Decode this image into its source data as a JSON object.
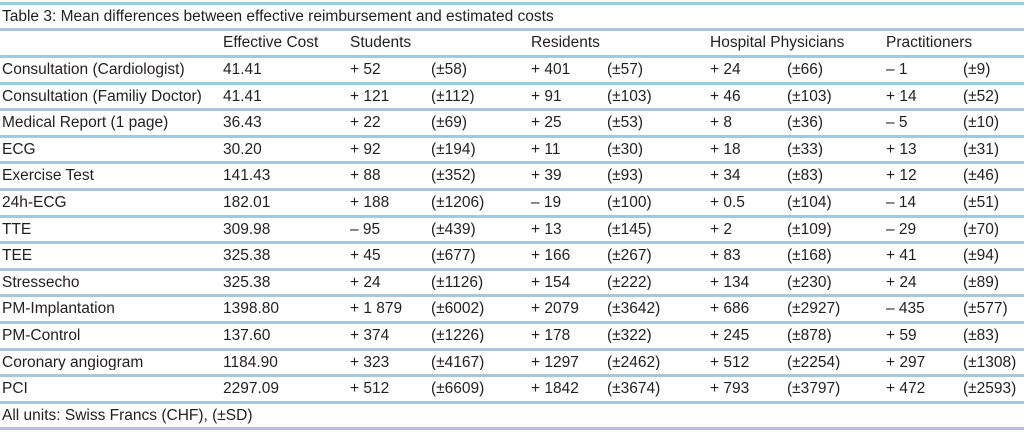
{
  "table": {
    "title": "Table 3: Mean differences between effective reimbursement and estimated costs",
    "header": {
      "row_label": "",
      "effective_cost": "Effective Cost",
      "groups": [
        "Students",
        "Residents",
        "Hospital Physicians",
        "Practitioners"
      ]
    },
    "rows": [
      {
        "label": "Consultation (Cardiologist)",
        "effective_cost": "41.41",
        "groups": [
          {
            "diff": "+ 52",
            "sd": "(±58)"
          },
          {
            "diff": "+ 401",
            "sd": "(±57)"
          },
          {
            "diff": "+ 24",
            "sd": "(±66)"
          },
          {
            "diff": "– 1",
            "sd": "(±9)"
          }
        ]
      },
      {
        "label": "Consultation (Familiy Doctor)",
        "effective_cost": "41.41",
        "groups": [
          {
            "diff": "+ 121",
            "sd": "(±112)"
          },
          {
            "diff": "+ 91",
            "sd": "(±103)"
          },
          {
            "diff": "+ 46",
            "sd": "(±103)"
          },
          {
            "diff": "+ 14",
            "sd": "(±52)"
          }
        ]
      },
      {
        "label": "Medical Report (1 page)",
        "effective_cost": "36.43",
        "groups": [
          {
            "diff": "+ 22",
            "sd": "(±69)"
          },
          {
            "diff": "+ 25",
            "sd": "(±53)"
          },
          {
            "diff": "+ 8",
            "sd": "(±36)"
          },
          {
            "diff": "– 5",
            "sd": "(±10)"
          }
        ]
      },
      {
        "label": "ECG",
        "effective_cost": "30.20",
        "groups": [
          {
            "diff": "+ 92",
            "sd": "(±194)"
          },
          {
            "diff": "+ 11",
            "sd": "(±30)"
          },
          {
            "diff": "+ 18",
            "sd": "(±33)"
          },
          {
            "diff": "+ 13",
            "sd": "(±31)"
          }
        ]
      },
      {
        "label": "Exercise Test",
        "effective_cost": "141.43",
        "groups": [
          {
            "diff": "+ 88",
            "sd": "(±352)"
          },
          {
            "diff": "+ 39",
            "sd": "(±93)"
          },
          {
            "diff": "+ 34",
            "sd": "(±83)"
          },
          {
            "diff": "+ 12",
            "sd": "(±46)"
          }
        ]
      },
      {
        "label": "24h-ECG",
        "effective_cost": "182.01",
        "groups": [
          {
            "diff": "+ 188",
            "sd": "(±1206)"
          },
          {
            "diff": "– 19",
            "sd": "(±100)"
          },
          {
            "diff": "+ 0.5",
            "sd": "(±104)"
          },
          {
            "diff": "– 14",
            "sd": "(±51)"
          }
        ]
      },
      {
        "label": "TTE",
        "effective_cost": "309.98",
        "groups": [
          {
            "diff": "– 95",
            "sd": "(±439)"
          },
          {
            "diff": "+ 13",
            "sd": "(±145)"
          },
          {
            "diff": "+ 2",
            "sd": "(±109)"
          },
          {
            "diff": "– 29",
            "sd": "(±70)"
          }
        ]
      },
      {
        "label": "TEE",
        "effective_cost": "325.38",
        "groups": [
          {
            "diff": "+ 45",
            "sd": "(±677)"
          },
          {
            "diff": "+ 166",
            "sd": "(±267)"
          },
          {
            "diff": "+ 83",
            "sd": "(±168)"
          },
          {
            "diff": "+ 41",
            "sd": "(±94)"
          }
        ]
      },
      {
        "label": "Stressecho",
        "effective_cost": "325.38",
        "groups": [
          {
            "diff": "+ 24",
            "sd": "(±1126)"
          },
          {
            "diff": "+ 154",
            "sd": "(±222)"
          },
          {
            "diff": "+ 134",
            "sd": "(±230)"
          },
          {
            "diff": "+ 24",
            "sd": "(±89)"
          }
        ]
      },
      {
        "label": "PM-Implantation",
        "effective_cost": "1398.80",
        "groups": [
          {
            "diff": "+ 1 879",
            "sd": "(±6002)"
          },
          {
            "diff": "+ 2079",
            "sd": "(±3642)"
          },
          {
            "diff": "+ 686",
            "sd": "(±2927)"
          },
          {
            "diff": "– 435",
            "sd": "(±577)"
          }
        ]
      },
      {
        "label": "PM-Control",
        "effective_cost": "137.60",
        "groups": [
          {
            "diff": "+ 374",
            "sd": "(±1226)"
          },
          {
            "diff": "+ 178",
            "sd": "(±322)"
          },
          {
            "diff": "+ 245",
            "sd": "(±878)"
          },
          {
            "diff": "+ 59",
            "sd": "(±83)"
          }
        ]
      },
      {
        "label": "Coronary angiogram",
        "effective_cost": "1184.90",
        "groups": [
          {
            "diff": "+ 323",
            "sd": "(±4167)"
          },
          {
            "diff": "+ 1297",
            "sd": "(±2462)"
          },
          {
            "diff": "+ 512",
            "sd": "(±2254)"
          },
          {
            "diff": "+ 297",
            "sd": "(±1308)"
          }
        ]
      },
      {
        "label": "PCI",
        "effective_cost": "2297.09",
        "groups": [
          {
            "diff": "+ 512",
            "sd": "(±6609)"
          },
          {
            "diff": "+ 1842",
            "sd": "(±3674)"
          },
          {
            "diff": "+ 793",
            "sd": "(±3797)"
          },
          {
            "diff": "+ 472",
            "sd": "(±2593)"
          }
        ]
      }
    ],
    "footnote": "All units: Swiss Francs (CHF), (±SD)"
  },
  "colors": {
    "rule_blue": "#a6c8dc",
    "text": "#231f20",
    "background": "#ffffff"
  }
}
